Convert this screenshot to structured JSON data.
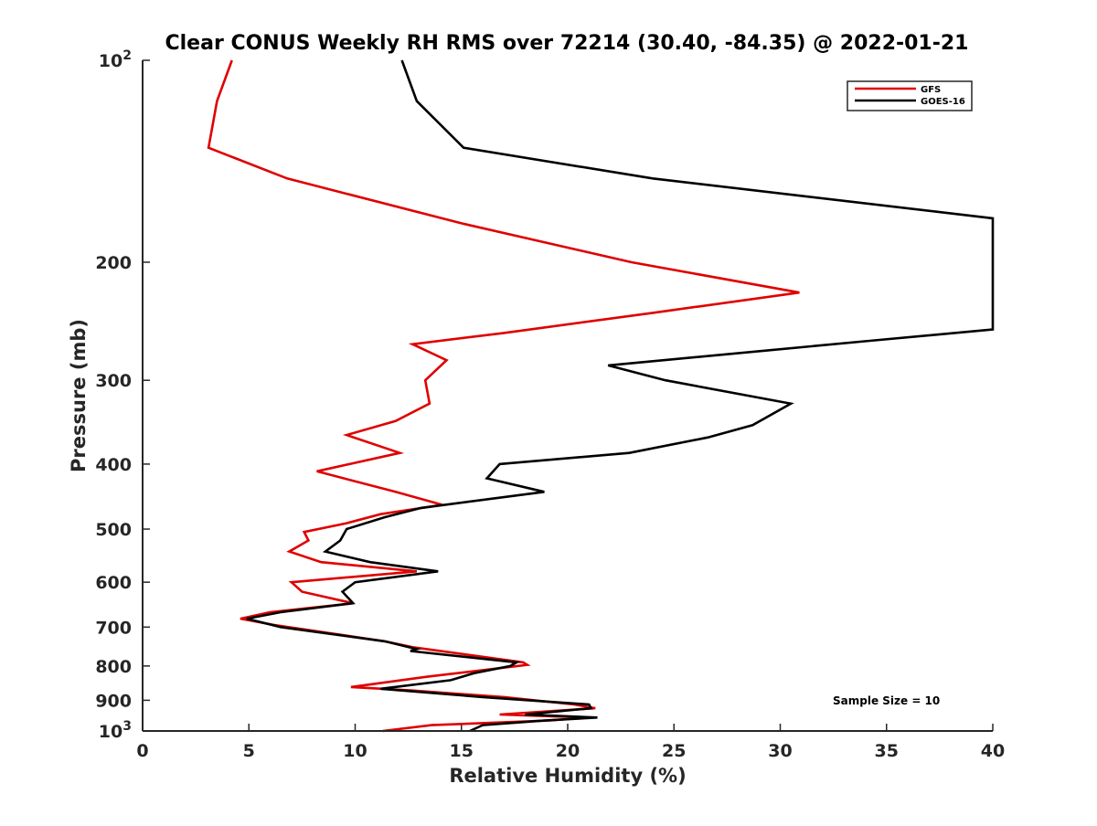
{
  "chart_data": {
    "type": "line",
    "title": "Clear CONUS Weekly RH RMS over 72214 (30.40, -84.35) @ 2022-01-21",
    "xlabel": "Relative Humidity (%)",
    "ylabel": "Pressure (mb)",
    "xlim": [
      0,
      40
    ],
    "ylim": [
      100,
      1000
    ],
    "y_scale": "log",
    "y_direction": "reversed",
    "x_ticks": [
      0,
      5,
      10,
      15,
      20,
      25,
      30,
      35,
      40
    ],
    "y_ticks": [
      {
        "value": 100,
        "base": "10",
        "exp": "2"
      },
      {
        "value": 200,
        "label": "200"
      },
      {
        "value": 300,
        "label": "300"
      },
      {
        "value": 400,
        "label": "400"
      },
      {
        "value": 500,
        "label": "500"
      },
      {
        "value": 600,
        "label": "600"
      },
      {
        "value": 700,
        "label": "700"
      },
      {
        "value": 800,
        "label": "800"
      },
      {
        "value": 900,
        "label": "900"
      },
      {
        "value": 1000,
        "base": "10",
        "exp": "3"
      }
    ],
    "legend": {
      "position": "top-right",
      "entries": [
        "GFS",
        "GOES-16"
      ]
    },
    "annotation": "Sample Size = 10",
    "series": [
      {
        "name": "GFS",
        "color": "#e00000",
        "points": [
          [
            4.2,
            100
          ],
          [
            3.5,
            115
          ],
          [
            3.1,
            135
          ],
          [
            6.8,
            150
          ],
          [
            15,
            175
          ],
          [
            23,
            200
          ],
          [
            30.9,
            222
          ],
          [
            24,
            238
          ],
          [
            17,
            255
          ],
          [
            12.7,
            265
          ],
          [
            14.3,
            280
          ],
          [
            13.3,
            300
          ],
          [
            13.5,
            325
          ],
          [
            11.9,
            345
          ],
          [
            9.6,
            362
          ],
          [
            12.1,
            385
          ],
          [
            8.2,
            410
          ],
          [
            11.9,
            440
          ],
          [
            14.1,
            460
          ],
          [
            11.2,
            475
          ],
          [
            9.6,
            490
          ],
          [
            7.6,
            505
          ],
          [
            7.8,
            520
          ],
          [
            6.9,
            540
          ],
          [
            8.4,
            560
          ],
          [
            12.9,
            578
          ],
          [
            7.0,
            600
          ],
          [
            7.5,
            620
          ],
          [
            9.9,
            645
          ],
          [
            6.0,
            665
          ],
          [
            4.6,
            680
          ],
          [
            6.2,
            695
          ],
          [
            11.4,
            735
          ],
          [
            12.7,
            750
          ],
          [
            17.9,
            790
          ],
          [
            18.1,
            797
          ],
          [
            13.4,
            830
          ],
          [
            9.8,
            860
          ],
          [
            12.6,
            870
          ],
          [
            17,
            890
          ],
          [
            20.3,
            913
          ],
          [
            21.3,
            925
          ],
          [
            16.8,
            945
          ],
          [
            20.9,
            955
          ],
          [
            19.1,
            965
          ],
          [
            13.6,
            980
          ],
          [
            11.3,
            1000
          ]
        ]
      },
      {
        "name": "GOES-16",
        "color": "#000000",
        "points": [
          [
            12.2,
            100
          ],
          [
            12.9,
            115
          ],
          [
            15.1,
            135
          ],
          [
            24,
            150
          ],
          [
            40,
            172
          ],
          [
            40,
            252
          ],
          [
            34.2,
            262
          ],
          [
            21.9,
            285
          ],
          [
            24.6,
            300
          ],
          [
            30.5,
            325
          ],
          [
            28.7,
            350
          ],
          [
            26.6,
            365
          ],
          [
            22.9,
            385
          ],
          [
            16.8,
            400
          ],
          [
            16.2,
            420
          ],
          [
            18.9,
            440
          ],
          [
            13.1,
            465
          ],
          [
            11.4,
            480
          ],
          [
            9.6,
            500
          ],
          [
            9.3,
            520
          ],
          [
            8.6,
            540
          ],
          [
            10.7,
            560
          ],
          [
            13.9,
            578
          ],
          [
            10.0,
            600
          ],
          [
            9.4,
            620
          ],
          [
            9.9,
            645
          ],
          [
            6.5,
            665
          ],
          [
            4.9,
            680
          ],
          [
            6.5,
            700
          ],
          [
            11.4,
            735
          ],
          [
            12.9,
            755
          ],
          [
            12.6,
            760
          ],
          [
            17.6,
            790
          ],
          [
            17.3,
            800
          ],
          [
            15.6,
            820
          ],
          [
            14.5,
            840
          ],
          [
            11.2,
            865
          ],
          [
            16.0,
            890
          ],
          [
            21,
            913
          ],
          [
            21.1,
            925
          ],
          [
            18.0,
            945
          ],
          [
            21.4,
            955
          ],
          [
            18.9,
            965
          ],
          [
            16.0,
            980
          ],
          [
            15.4,
            1000
          ]
        ]
      }
    ]
  }
}
